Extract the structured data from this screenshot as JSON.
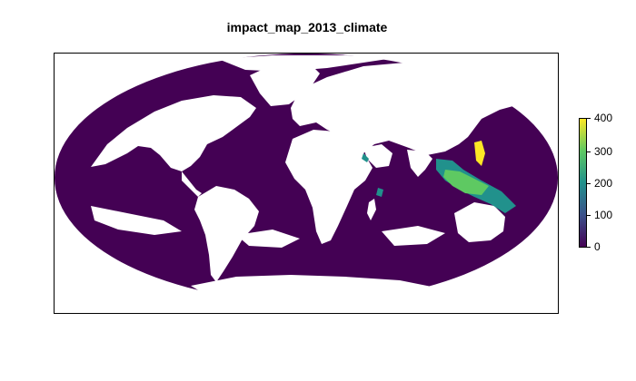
{
  "title": "impact_map_2013_climate",
  "colors": {
    "ocean_low": "#440154",
    "mid": "#21918c",
    "high": "#5ec962",
    "max": "#fde725",
    "land": "#ffffff",
    "frame": "#000000"
  },
  "legend": {
    "min": 0,
    "max": 400,
    "ticks": [
      "0",
      "100",
      "200",
      "300",
      "400"
    ]
  }
}
